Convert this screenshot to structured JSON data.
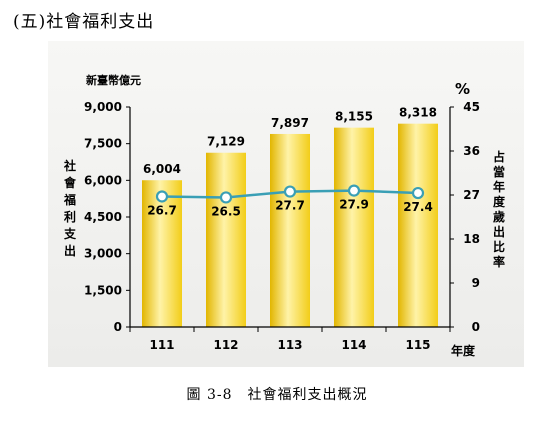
{
  "section_heading": "(五)社會福利支出",
  "caption": "圖 3-8　社會福利支出概況",
  "chart_data": {
    "type": "bar",
    "categories": [
      "111",
      "112",
      "113",
      "114",
      "115"
    ],
    "series": [
      {
        "values": [
          6004,
          7129,
          7897,
          8155,
          8318
        ],
        "labels": [
          "6,004",
          "7,129",
          "7,897",
          "8,155",
          "8,318"
        ],
        "axis": "left",
        "kind": "bar"
      },
      {
        "values": [
          26.7,
          26.5,
          27.7,
          27.9,
          27.4
        ],
        "labels": [
          "26.7",
          "26.5",
          "27.7",
          "27.9",
          "27.4"
        ],
        "axis": "right",
        "kind": "line"
      }
    ],
    "left_axis": {
      "unit": "新臺幣億元",
      "label": "社會福利支出",
      "ticks": [
        "9,000",
        "7,500",
        "6,000",
        "4,500",
        "3,000",
        "1,500",
        "0"
      ],
      "ylim": [
        0,
        9000
      ]
    },
    "right_axis": {
      "unit": "%",
      "label": "占當年度歲出比率",
      "ticks": [
        "45",
        "36",
        "27",
        "18",
        "9",
        "0"
      ],
      "ylim": [
        0,
        45
      ]
    },
    "x_unit": "年度",
    "colors": {
      "bar": "#f2cd18",
      "bar_highlight": "#fff3a8",
      "line": "#3a9fb5",
      "marker_fill": "#ffffff"
    }
  }
}
